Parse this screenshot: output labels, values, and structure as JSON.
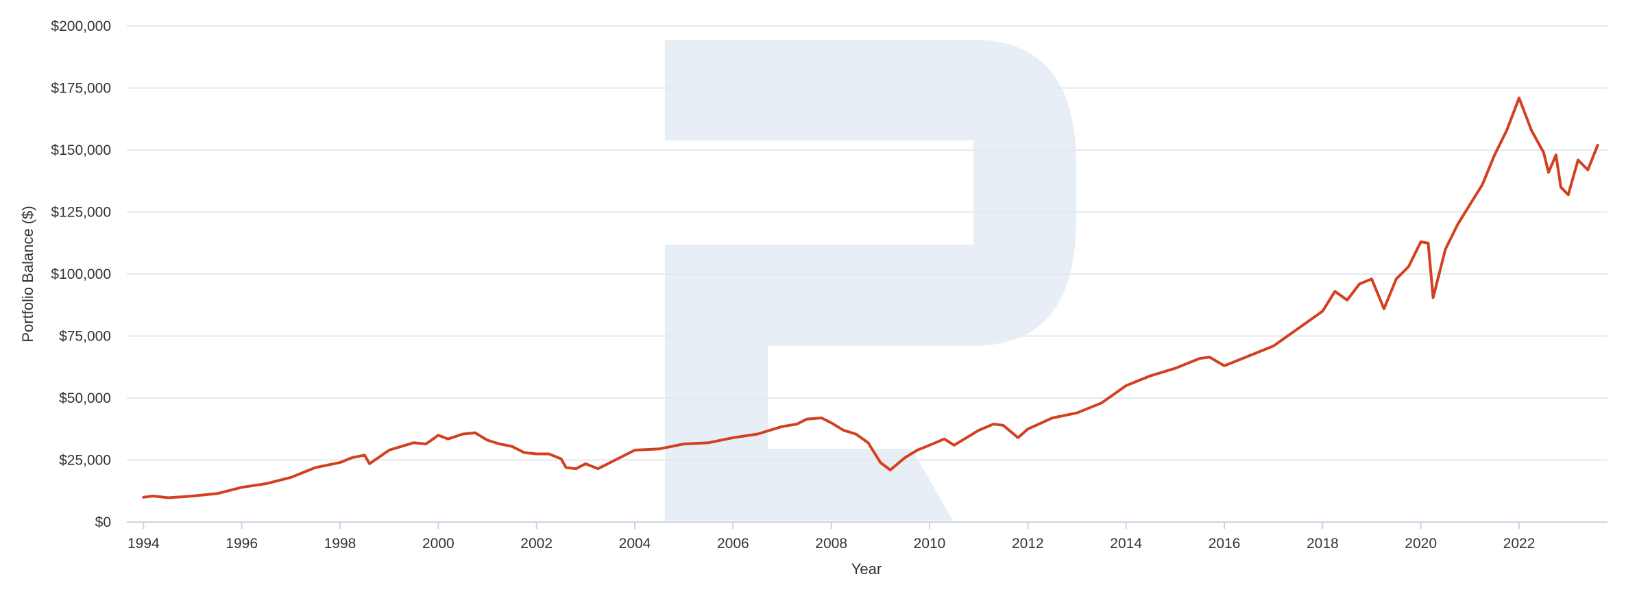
{
  "colors": {
    "line": "#d2401e",
    "grid": "#e4e8ee",
    "axis": "#c9d4e3",
    "watermark": "#e8eef6",
    "text": "#333333"
  },
  "chart_data": {
    "type": "line",
    "title": "",
    "xlabel": "Year",
    "ylabel": "Portfolio Balance ($)",
    "xlim": [
      1993.8,
      2023.8
    ],
    "ylim": [
      0,
      200000
    ],
    "grid": "horizontal",
    "legend": "none",
    "x_ticks": [
      1994,
      1996,
      1998,
      2000,
      2002,
      2004,
      2006,
      2008,
      2010,
      2012,
      2014,
      2016,
      2018,
      2020,
      2022
    ],
    "x_tick_labels": [
      "1994",
      "1996",
      "1998",
      "2000",
      "2002",
      "2004",
      "2006",
      "2008",
      "2010",
      "2012",
      "2014",
      "2016",
      "2018",
      "2020",
      "2022"
    ],
    "y_ticks": [
      0,
      25000,
      50000,
      75000,
      100000,
      125000,
      150000,
      175000,
      200000
    ],
    "y_tick_labels": [
      "$0",
      "$25,000",
      "$50,000",
      "$75,000",
      "$100,000",
      "$125,000",
      "$150,000",
      "$175,000",
      "$200,000"
    ],
    "series": [
      {
        "x": [
          1994.0,
          1994.2,
          1994.5,
          1994.8,
          1995.0,
          1995.5,
          1996.0,
          1996.5,
          1997.0,
          1997.25,
          1997.5,
          1998.0,
          1998.25,
          1998.5,
          1998.6,
          1999.0,
          1999.25,
          1999.5,
          1999.75,
          2000.0,
          2000.2,
          2000.5,
          2000.75,
          2001.0,
          2001.25,
          2001.5,
          2001.75,
          2002.0,
          2002.25,
          2002.5,
          2002.6,
          2002.8,
          2003.0,
          2003.25,
          2003.5,
          2004.0,
          2004.5,
          2005.0,
          2005.5,
          2006.0,
          2006.5,
          2007.0,
          2007.3,
          2007.5,
          2007.8,
          2008.0,
          2008.25,
          2008.5,
          2008.75,
          2009.0,
          2009.2,
          2009.5,
          2009.75,
          2010.0,
          2010.3,
          2010.5,
          2010.75,
          2011.0,
          2011.3,
          2011.5,
          2011.8,
          2012.0,
          2012.5,
          2013.0,
          2013.5,
          2014.0,
          2014.5,
          2015.0,
          2015.5,
          2015.7,
          2016.0,
          2016.5,
          2017.0,
          2017.5,
          2018.0,
          2018.25,
          2018.5,
          2018.75,
          2019.0,
          2019.25,
          2019.5,
          2019.75,
          2020.0,
          2020.15,
          2020.25,
          2020.5,
          2020.75,
          2021.0,
          2021.25,
          2021.5,
          2021.75,
          2022.0,
          2022.25,
          2022.5,
          2022.6,
          2022.75,
          2022.85,
          2023.0,
          2023.2,
          2023.4,
          2023.6
        ],
        "values": [
          10000,
          10500,
          9800,
          10200,
          10500,
          11500,
          14000,
          15500,
          18000,
          20000,
          22000,
          24000,
          26000,
          27000,
          23500,
          29000,
          30500,
          32000,
          31500,
          35000,
          33500,
          35500,
          36000,
          33000,
          31500,
          30500,
          28000,
          27500,
          27500,
          25500,
          22000,
          21500,
          23500,
          21500,
          24000,
          29000,
          29500,
          31500,
          32000,
          34000,
          35500,
          38500,
          39500,
          41500,
          42000,
          40000,
          37000,
          35500,
          32000,
          24000,
          21000,
          26000,
          29000,
          31000,
          33500,
          31000,
          34000,
          37000,
          39500,
          39000,
          34000,
          37500,
          42000,
          44000,
          48000,
          55000,
          59000,
          62000,
          66000,
          66500,
          63000,
          67000,
          71000,
          78000,
          85000,
          93000,
          89500,
          96000,
          98000,
          86000,
          98000,
          103000,
          113000,
          112500,
          90500,
          110000,
          120000,
          128000,
          136000,
          148000,
          158000,
          171000,
          158000,
          149000,
          141000,
          148000,
          135000,
          132000,
          146000,
          142000,
          152000
        ]
      }
    ]
  }
}
